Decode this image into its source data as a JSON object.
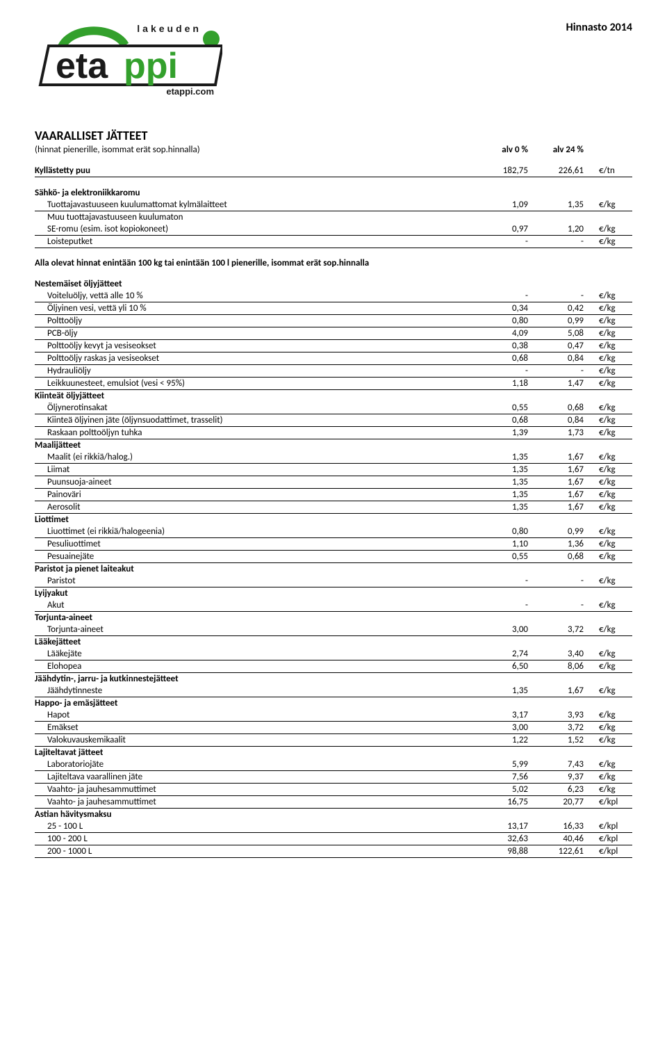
{
  "page_title": "Hinnasto 2014",
  "logo": {
    "top_text": "lakeuden",
    "main_text": "etappi",
    "sub_text": "etappi.com",
    "colors": {
      "dark": "#1a1a1a",
      "green": "#33a02c"
    }
  },
  "section_title": "VAARALLISET JÄTTEET",
  "subtitle": "(hinnat pienerille, isommat erät sop.hinnalla)",
  "col_header_1": "alv 0 %",
  "col_header_2": "alv 24 %",
  "block1": {
    "row": {
      "label": "Kyllästetty puu",
      "v1": "182,75",
      "v2": "226,61",
      "unit": "€/tn"
    }
  },
  "block2": {
    "group": "Sähkö- ja elektroniikkaromu",
    "rows": [
      {
        "label": "Tuottajavastuuseen kuulumattomat kylmälaitteet",
        "v1": "1,09",
        "v2": "1,35",
        "unit": "€/kg"
      },
      {
        "label": "Muu tuottajavastuuseen kuulumaton",
        "noline": true
      },
      {
        "label": "SE-romu (esim. isot kopiokoneet)",
        "v1": "0,97",
        "v2": "1,20",
        "unit": "€/kg"
      },
      {
        "label": "Loisteputket",
        "v1": "-",
        "v2": "-",
        "unit": "€/kg"
      }
    ]
  },
  "intertext": "Alla olevat hinnat enintään 100 kg tai enintään 100 l pienerille, isommat erät sop.hinnalla",
  "sections": [
    {
      "group": "Nestemäiset öljyjätteet",
      "rows": [
        {
          "label": "Voiteluöljy, vettä alle 10 %",
          "v1": "-",
          "v2": "-",
          "unit": "€/kg"
        },
        {
          "label": "Öljyinen vesi, vettä yli 10 %",
          "v1": "0,34",
          "v2": "0,42",
          "unit": "€/kg"
        },
        {
          "label": "Polttoöljy",
          "v1": "0,80",
          "v2": "0,99",
          "unit": "€/kg"
        },
        {
          "label": "PCB-öljy",
          "v1": "4,09",
          "v2": "5,08",
          "unit": "€/kg"
        },
        {
          "label": "Polttoöljy kevyt ja vesiseokset",
          "v1": "0,38",
          "v2": "0,47",
          "unit": "€/kg"
        },
        {
          "label": "Polttoöljy raskas ja vesiseokset",
          "v1": "0,68",
          "v2": "0,84",
          "unit": "€/kg"
        },
        {
          "label": "Hydrauliöljy",
          "v1": "-",
          "v2": "-",
          "unit": "€/kg"
        },
        {
          "label": "Leikkuunesteet, emulsiot (vesi < 95%)",
          "v1": "1,18",
          "v2": "1,47",
          "unit": "€/kg"
        }
      ]
    },
    {
      "group": "Kiinteät öljyjätteet",
      "rows": [
        {
          "label": "Öljynerotinsakat",
          "v1": "0,55",
          "v2": "0,68",
          "unit": "€/kg"
        },
        {
          "label": "Kiinteä öljyinen jäte (öljynsuodattimet, trasselit)",
          "v1": "0,68",
          "v2": "0,84",
          "unit": "€/kg"
        },
        {
          "label": "Raskaan polttoöljyn tuhka",
          "v1": "1,39",
          "v2": "1,73",
          "unit": "€/kg"
        }
      ]
    },
    {
      "group": "Maalijätteet",
      "rows": [
        {
          "label": "Maalit (ei rikkiä/halog.)",
          "v1": "1,35",
          "v2": "1,67",
          "unit": "€/kg"
        },
        {
          "label": "Liimat",
          "v1": "1,35",
          "v2": "1,67",
          "unit": "€/kg"
        },
        {
          "label": "Puunsuoja-aineet",
          "v1": "1,35",
          "v2": "1,67",
          "unit": "€/kg"
        },
        {
          "label": "Painoväri",
          "v1": "1,35",
          "v2": "1,67",
          "unit": "€/kg"
        },
        {
          "label": "Aerosolit",
          "v1": "1,35",
          "v2": "1,67",
          "unit": "€/kg"
        }
      ]
    },
    {
      "group": "Liottimet",
      "rows": [
        {
          "label": "Liuottimet (ei rikkiä/halogeenia)",
          "v1": "0,80",
          "v2": "0,99",
          "unit": "€/kg"
        },
        {
          "label": "Pesuliuottimet",
          "v1": "1,10",
          "v2": "1,36",
          "unit": "€/kg"
        },
        {
          "label": "Pesuainejäte",
          "v1": "0,55",
          "v2": "0,68",
          "unit": "€/kg"
        }
      ]
    },
    {
      "group": "Paristot ja pienet laiteakut",
      "rows": [
        {
          "label": "Paristot",
          "v1": "-",
          "v2": "-",
          "unit": "€/kg"
        }
      ]
    },
    {
      "group": "Lyijyakut",
      "rows": [
        {
          "label": "Akut",
          "v1": "-",
          "v2": "-",
          "unit": "€/kg"
        }
      ]
    },
    {
      "group": "Torjunta-aineet",
      "rows": [
        {
          "label": "Torjunta-aineet",
          "v1": "3,00",
          "v2": "3,72",
          "unit": "€/kg"
        }
      ]
    },
    {
      "group": "Lääkejätteet",
      "rows": [
        {
          "label": "Lääkejäte",
          "v1": "2,74",
          "v2": "3,40",
          "unit": "€/kg"
        },
        {
          "label": "Elohopea",
          "v1": "6,50",
          "v2": "8,06",
          "unit": "€/kg"
        }
      ]
    },
    {
      "group": "Jäähdytin-, jarru- ja kutkinnestejätteet",
      "rows": [
        {
          "label": "Jäähdytinneste",
          "v1": "1,35",
          "v2": "1,67",
          "unit": "€/kg"
        }
      ]
    },
    {
      "group": "Happo- ja emäsjätteet",
      "rows": [
        {
          "label": "Hapot",
          "v1": "3,17",
          "v2": "3,93",
          "unit": "€/kg"
        },
        {
          "label": "Emäkset",
          "v1": "3,00",
          "v2": "3,72",
          "unit": "€/kg"
        },
        {
          "label": "Valokuvauskemikaalit",
          "v1": "1,22",
          "v2": "1,52",
          "unit": "€/kg"
        }
      ]
    },
    {
      "group": "Lajiteltavat jätteet",
      "rows": [
        {
          "label": "Laboratoriojäte",
          "v1": "5,99",
          "v2": "7,43",
          "unit": "€/kg"
        },
        {
          "label": "Lajiteltava vaarallinen jäte",
          "v1": "7,56",
          "v2": "9,37",
          "unit": "€/kg"
        },
        {
          "label": "Vaahto- ja jauhesammuttimet",
          "v1": "5,02",
          "v2": "6,23",
          "unit": "€/kg"
        },
        {
          "label": "Vaahto- ja jauhesammuttimet",
          "v1": "16,75",
          "v2": "20,77",
          "unit": "€/kpl"
        }
      ]
    },
    {
      "group": "Astian hävitysmaksu",
      "rows": [
        {
          "label": "25 - 100 L",
          "v1": "13,17",
          "v2": "16,33",
          "unit": "€/kpl"
        },
        {
          "label": "100 - 200 L",
          "v1": "32,63",
          "v2": "40,46",
          "unit": "€/kpl"
        },
        {
          "label": "200 - 1000 L",
          "v1": "98,88",
          "v2": "122,61",
          "unit": "€/kpl"
        }
      ]
    }
  ]
}
